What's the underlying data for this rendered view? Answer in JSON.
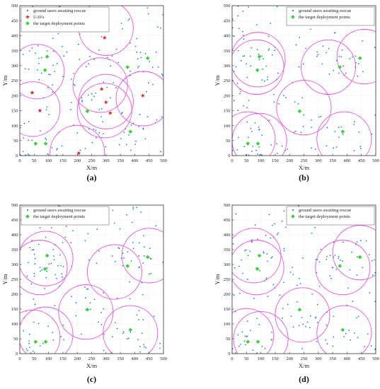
{
  "colors": {
    "users": "#1f7fd6",
    "uav": "#e0202a",
    "target": "#3bd13b",
    "circle": "#e54ee0",
    "axis": "#333333",
    "grid": "#d9d9d9"
  },
  "chart_data": [
    {
      "type": "scatter",
      "panel_label": "(a)",
      "xlabel": "X/m",
      "ylabel": "Y/m",
      "xlim": [
        0,
        500
      ],
      "ylim": [
        0,
        500
      ],
      "xticks": [
        0,
        50,
        100,
        150,
        200,
        250,
        300,
        350,
        400,
        450,
        500
      ],
      "yticks": [
        0,
        50,
        100,
        150,
        200,
        250,
        300,
        350,
        400,
        450,
        500
      ],
      "grid": true,
      "legend_position": "top-left",
      "legend": [
        "ground users awaiting rescue",
        "UAVs",
        "the target deployment points"
      ],
      "users_seed": 11,
      "users_count": 170,
      "uavs": [
        [
          295,
          393
        ],
        [
          43,
          210
        ],
        [
          70,
          150
        ],
        [
          285,
          222
        ],
        [
          300,
          178
        ],
        [
          315,
          142
        ],
        [
          428,
          200
        ],
        [
          205,
          8
        ]
      ],
      "targets": [
        [
          95,
          330
        ],
        [
          88,
          285
        ],
        [
          375,
          295
        ],
        [
          445,
          325
        ],
        [
          235,
          148
        ],
        [
          55,
          40
        ],
        [
          90,
          40
        ],
        [
          385,
          80
        ]
      ],
      "coverage_circles": [
        {
          "cx": 300,
          "cy": 425,
          "r": 95
        },
        {
          "cx": 60,
          "cy": 280,
          "r": 95
        },
        {
          "cx": 45,
          "cy": 155,
          "r": 95
        },
        {
          "cx": 280,
          "cy": 235,
          "r": 95
        },
        {
          "cx": 300,
          "cy": 180,
          "r": 95
        },
        {
          "cx": 295,
          "cy": 150,
          "r": 95
        },
        {
          "cx": 430,
          "cy": 190,
          "r": 95
        },
        {
          "cx": 200,
          "cy": 10,
          "r": 95
        }
      ]
    },
    {
      "type": "scatter",
      "panel_label": "(b)",
      "xlabel": "X/m",
      "ylabel": "Y/m",
      "xlim": [
        0,
        500
      ],
      "ylim": [
        0,
        500
      ],
      "xticks": [
        0,
        50,
        100,
        150,
        200,
        250,
        300,
        350,
        400,
        450,
        500
      ],
      "yticks": [
        0,
        50,
        100,
        150,
        200,
        250,
        300,
        350,
        400,
        450,
        500
      ],
      "grid": true,
      "legend_position": "top-right",
      "legend": [
        "ground users awaiting rescue",
        "the target deployment points"
      ],
      "users_seed": 23,
      "users_count": 170,
      "targets": [
        [
          95,
          330
        ],
        [
          88,
          285
        ],
        [
          375,
          295
        ],
        [
          445,
          325
        ],
        [
          235,
          148
        ],
        [
          55,
          40
        ],
        [
          90,
          40
        ],
        [
          385,
          80
        ]
      ],
      "coverage_circles": [
        {
          "cx": 90,
          "cy": 320,
          "r": 95
        },
        {
          "cx": 85,
          "cy": 295,
          "r": 95
        },
        {
          "cx": 335,
          "cy": 295,
          "r": 95
        },
        {
          "cx": 460,
          "cy": 330,
          "r": 95
        },
        {
          "cx": 250,
          "cy": 160,
          "r": 95
        },
        {
          "cx": 55,
          "cy": 55,
          "r": 95
        },
        {
          "cx": 95,
          "cy": 50,
          "r": 95
        },
        {
          "cx": 390,
          "cy": 55,
          "r": 95
        }
      ]
    },
    {
      "type": "scatter",
      "panel_label": "(c)",
      "xlabel": "X/m",
      "ylabel": "Y/m",
      "xlim": [
        0,
        500
      ],
      "ylim": [
        0,
        500
      ],
      "xticks": [
        0,
        50,
        100,
        150,
        200,
        250,
        300,
        350,
        400,
        450,
        500
      ],
      "yticks": [
        0,
        50,
        100,
        150,
        200,
        250,
        300,
        350,
        400,
        450,
        500
      ],
      "grid": true,
      "legend_position": "top-left",
      "legend": [
        "ground users awaiting rescue",
        "the target deployment points"
      ],
      "users_seed": 37,
      "users_count": 170,
      "targets": [
        [
          95,
          330
        ],
        [
          88,
          285
        ],
        [
          375,
          295
        ],
        [
          445,
          325
        ],
        [
          235,
          148
        ],
        [
          55,
          40
        ],
        [
          90,
          40
        ],
        [
          385,
          80
        ]
      ],
      "coverage_circles": [
        {
          "cx": 90,
          "cy": 320,
          "r": 95
        },
        {
          "cx": 70,
          "cy": 290,
          "r": 95
        },
        {
          "cx": 330,
          "cy": 275,
          "r": 95
        },
        {
          "cx": 450,
          "cy": 330,
          "r": 95
        },
        {
          "cx": 230,
          "cy": 140,
          "r": 95
        },
        {
          "cx": 45,
          "cy": 55,
          "r": 95
        },
        {
          "cx": 90,
          "cy": 65,
          "r": 95
        },
        {
          "cx": 385,
          "cy": 70,
          "r": 95
        }
      ]
    },
    {
      "type": "scatter",
      "panel_label": "(d)",
      "xlabel": "X/m",
      "ylabel": "Y/m",
      "xlim": [
        0,
        500
      ],
      "ylim": [
        0,
        500
      ],
      "xticks": [
        0,
        50,
        100,
        150,
        200,
        250,
        300,
        350,
        400,
        450,
        500
      ],
      "yticks": [
        0,
        50,
        100,
        150,
        200,
        250,
        300,
        350,
        400,
        450,
        500
      ],
      "grid": true,
      "legend_position": "top-right",
      "legend": [
        "ground users awaiting rescue",
        "the target deployment points"
      ],
      "users_seed": 53,
      "users_count": 170,
      "targets": [
        [
          95,
          330
        ],
        [
          88,
          285
        ],
        [
          375,
          295
        ],
        [
          445,
          325
        ],
        [
          235,
          148
        ],
        [
          55,
          40
        ],
        [
          90,
          40
        ],
        [
          385,
          80
        ]
      ],
      "coverage_circles": [
        {
          "cx": 75,
          "cy": 330,
          "r": 95
        },
        {
          "cx": 85,
          "cy": 290,
          "r": 95
        },
        {
          "cx": 385,
          "cy": 290,
          "r": 95
        },
        {
          "cx": 445,
          "cy": 340,
          "r": 95
        },
        {
          "cx": 245,
          "cy": 130,
          "r": 95
        },
        {
          "cx": 50,
          "cy": 60,
          "r": 95
        },
        {
          "cx": 100,
          "cy": 50,
          "r": 95
        },
        {
          "cx": 390,
          "cy": 70,
          "r": 95
        }
      ]
    }
  ]
}
